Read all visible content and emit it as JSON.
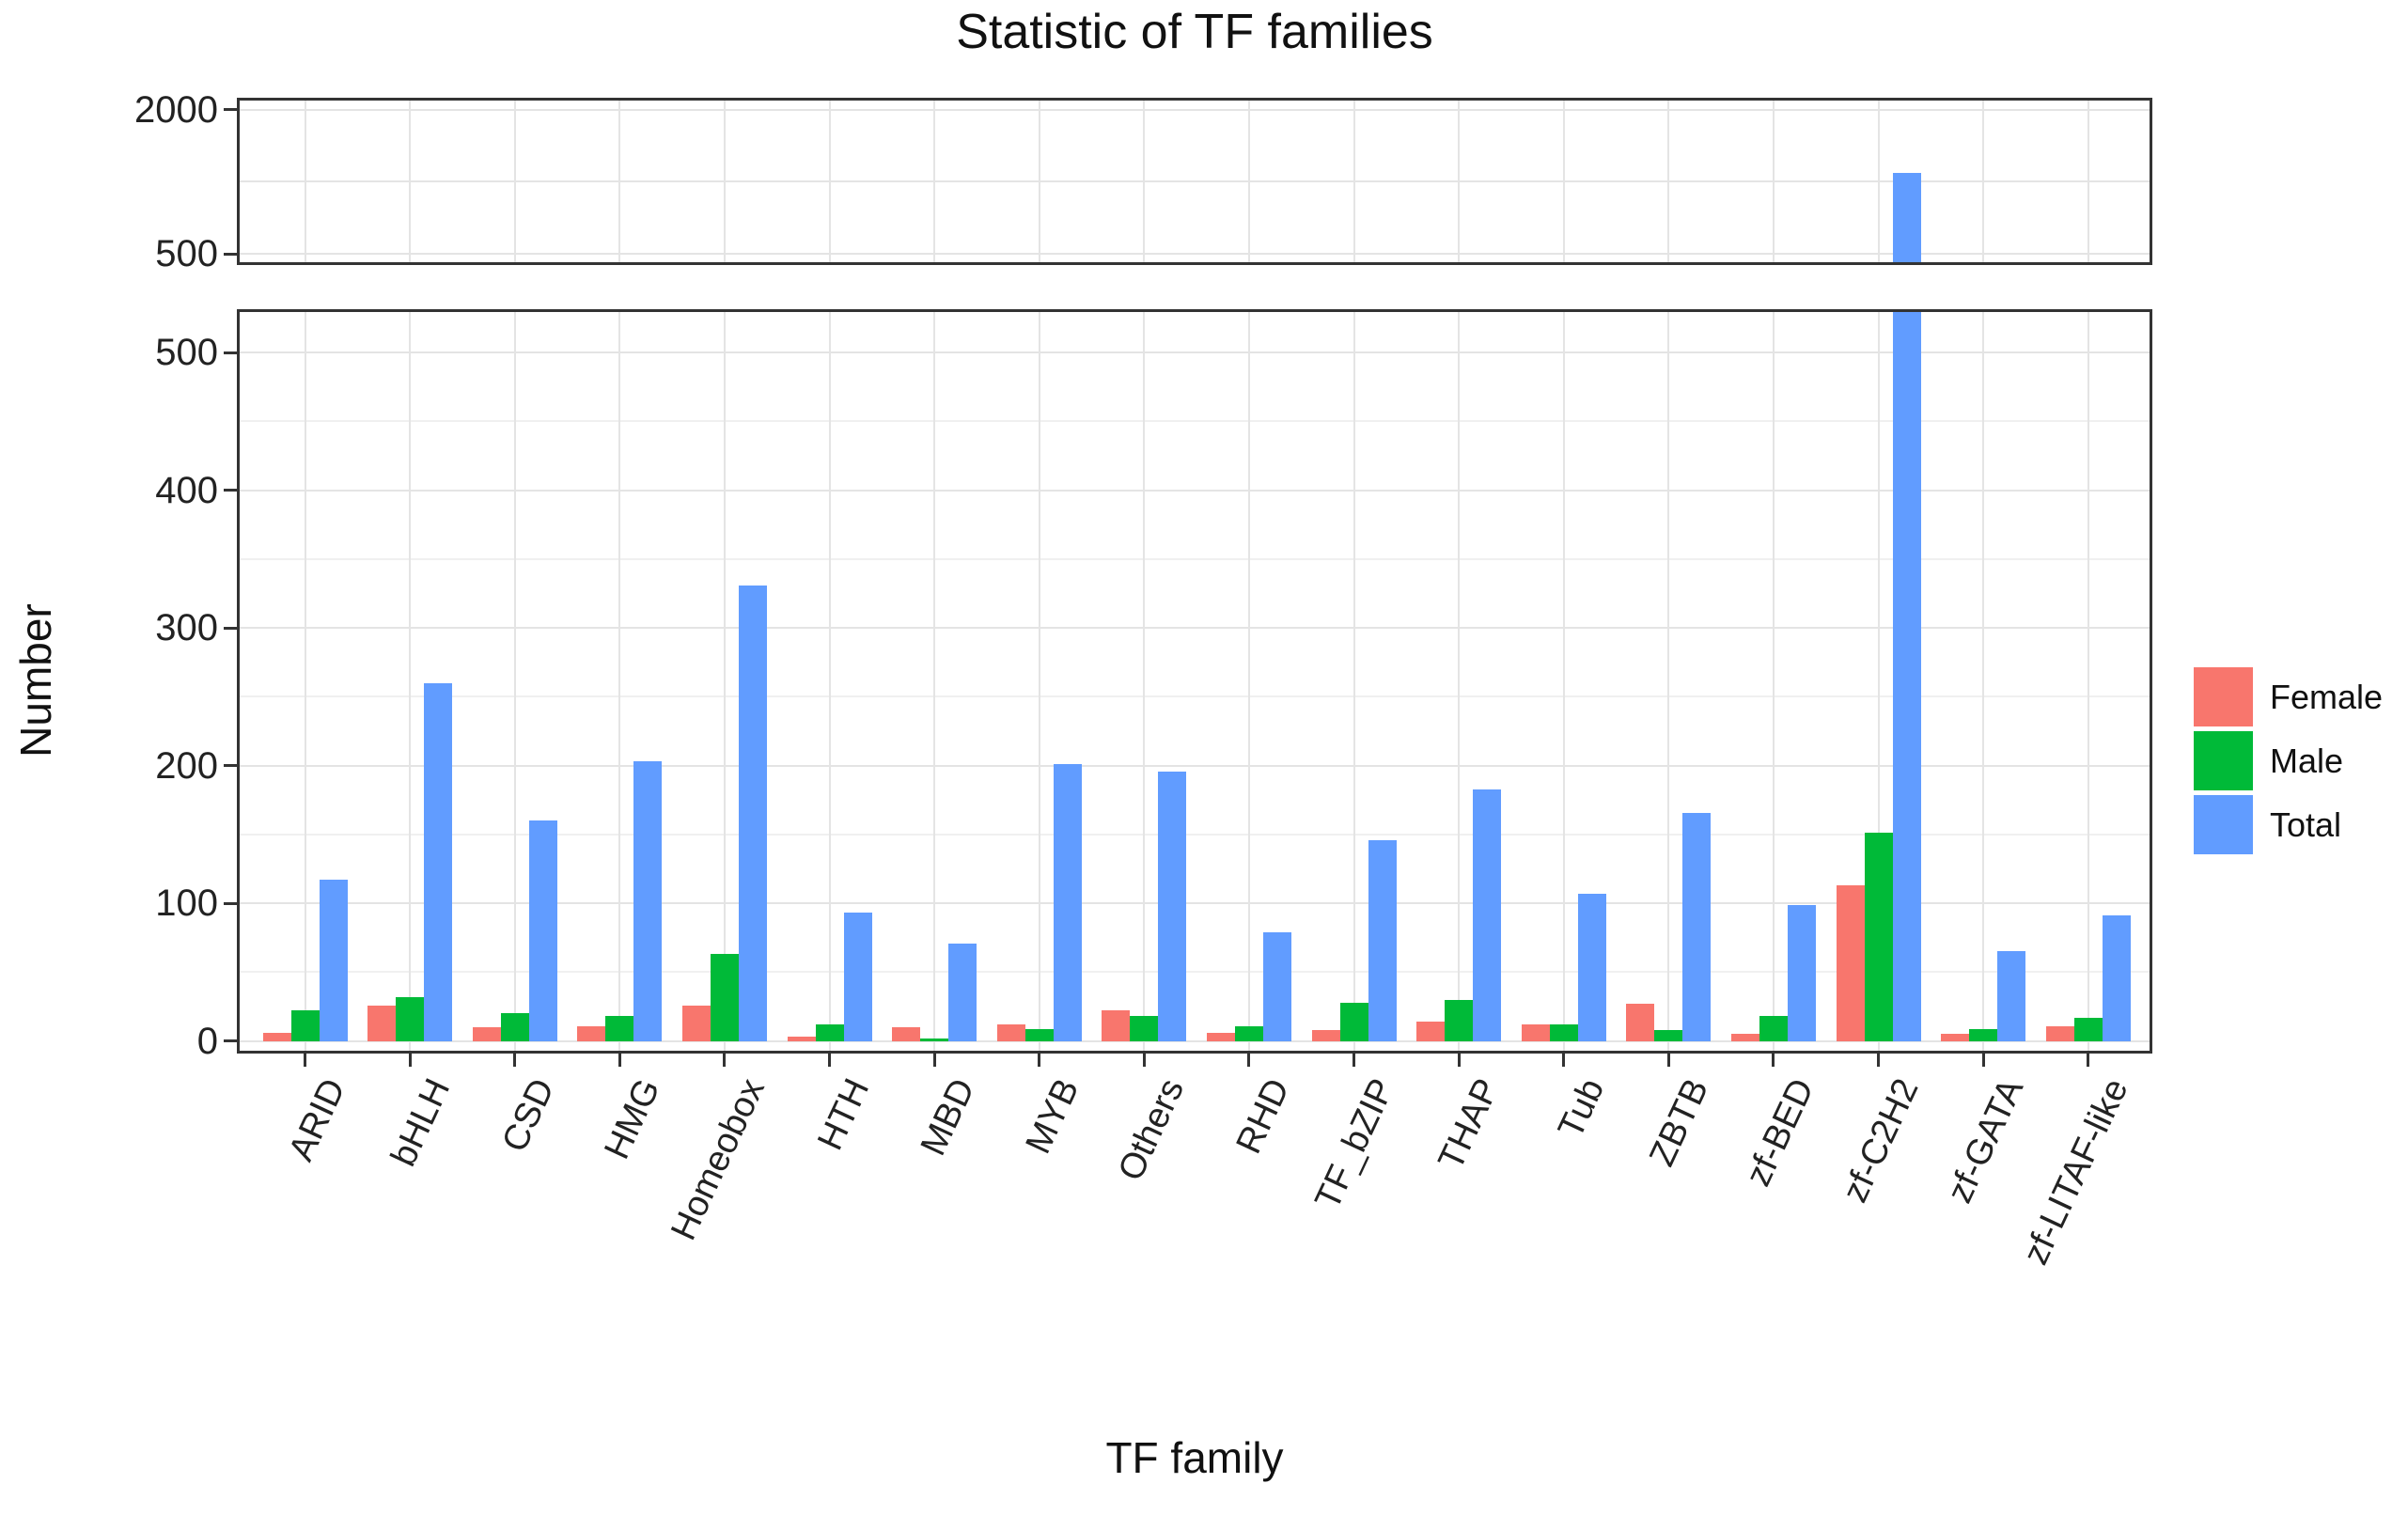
{
  "title": "Statistic of TF families",
  "axes": {
    "x_title": "TF family",
    "y_title": "Number",
    "upper_y_tick_labels": [
      "2000",
      "500"
    ],
    "lower_y_tick_labels": [
      "500",
      "400",
      "300",
      "200",
      "100",
      "0"
    ]
  },
  "legend": {
    "items": [
      {
        "label": "Female",
        "color": "#F8766D"
      },
      {
        "label": "Male",
        "color": "#00BA38"
      },
      {
        "label": "Total",
        "color": "#619CFF"
      }
    ]
  },
  "chart_data": {
    "type": "bar",
    "title": "Statistic of TF families",
    "xlabel": "TF family",
    "ylabel": "Number",
    "grid": true,
    "legend_position": "right",
    "categories": [
      "ARID",
      "bHLH",
      "CSD",
      "HMG",
      "Homeobox",
      "HTH",
      "MBD",
      "MYB",
      "Others",
      "RHD",
      "TF_bZIP",
      "THAP",
      "Tub",
      "ZBTB",
      "zf-BED",
      "zf-C2H2",
      "zf-GATA",
      "zf-LITAF-like"
    ],
    "series": [
      {
        "name": "Female",
        "color": "#F8766D",
        "values": [
          6,
          26,
          10,
          11,
          26,
          3,
          10,
          12,
          22,
          6,
          8,
          14,
          12,
          27,
          5,
          113,
          5,
          11
        ]
      },
      {
        "name": "Male",
        "color": "#00BA38",
        "values": [
          22,
          32,
          20,
          18,
          63,
          12,
          2,
          9,
          18,
          11,
          28,
          30,
          12,
          8,
          18,
          151,
          9,
          17
        ]
      },
      {
        "name": "Total",
        "color": "#619CFF",
        "values": [
          117,
          260,
          160,
          203,
          331,
          93,
          71,
          201,
          196,
          79,
          146,
          183,
          107,
          166,
          99,
          1345,
          65,
          91
        ]
      }
    ],
    "broken_y_axis": {
      "upper_range": [
        500,
        2000
      ],
      "upper_ticks": [
        2000,
        500
      ],
      "upper_gridlines": [
        2000,
        1250,
        500
      ],
      "lower_range": [
        0,
        530
      ],
      "lower_ticks": [
        500,
        400,
        300,
        200,
        100,
        0
      ],
      "lower_minor_gridlines": [
        450,
        350,
        250,
        150,
        50
      ]
    }
  }
}
